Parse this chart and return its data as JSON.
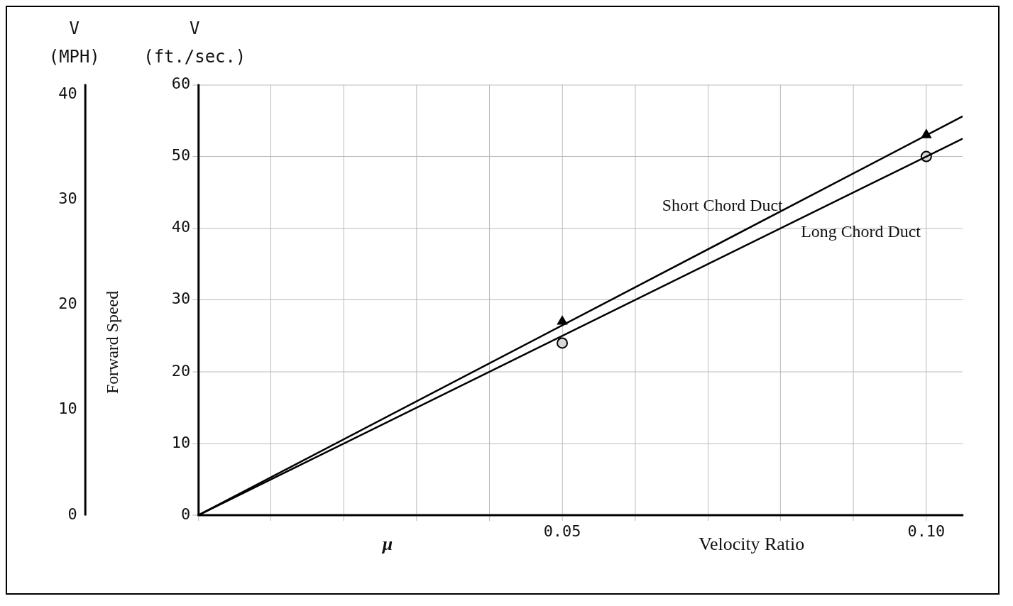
{
  "chart_data": {
    "type": "line",
    "ylabel": "V (ft./sec.)",
    "y2label": "V (MPH)",
    "xlabel": "Velocity Ratio",
    "annotations": [
      "μ",
      "Forward Speed"
    ],
    "xlim": [
      0,
      0.105
    ],
    "xticks": [
      {
        "value": 0,
        "label": null
      },
      {
        "value": 0.01,
        "label": null
      },
      {
        "value": 0.02,
        "label": null
      },
      {
        "value": 0.03,
        "label": null
      },
      {
        "value": 0.04,
        "label": null
      },
      {
        "value": 0.05,
        "label": "0.05"
      },
      {
        "value": 0.06,
        "label": null
      },
      {
        "value": 0.07,
        "label": null
      },
      {
        "value": 0.08,
        "label": null
      },
      {
        "value": 0.09,
        "label": null
      },
      {
        "value": 0.1,
        "label": "0.10"
      }
    ],
    "ylim": [
      0,
      60
    ],
    "yticks": [
      0,
      10,
      20,
      30,
      40,
      50,
      60
    ],
    "y2lim": [
      0,
      40.9
    ],
    "y2ticks": [
      0,
      10,
      20,
      30,
      40
    ],
    "grid": true,
    "legend": false,
    "series": [
      {
        "name": "Short Chord Duct",
        "x": [
          0,
          0.105
        ],
        "values": [
          0,
          55.6
        ],
        "color": "#000000",
        "marker": "none"
      },
      {
        "type": "scatter",
        "x": [
          0.05,
          0.1
        ],
        "values": [
          27,
          53
        ],
        "color": "#000000",
        "marker": "triangle"
      },
      {
        "name": "Long Chord Duct",
        "x": [
          0,
          0.105
        ],
        "values": [
          0,
          52.5
        ],
        "color": "#000000",
        "marker": "none"
      },
      {
        "type": "scatter",
        "x": [
          0.05,
          0.1
        ],
        "values": [
          24,
          50
        ],
        "color": "#000000",
        "marker": "circle"
      }
    ]
  }
}
